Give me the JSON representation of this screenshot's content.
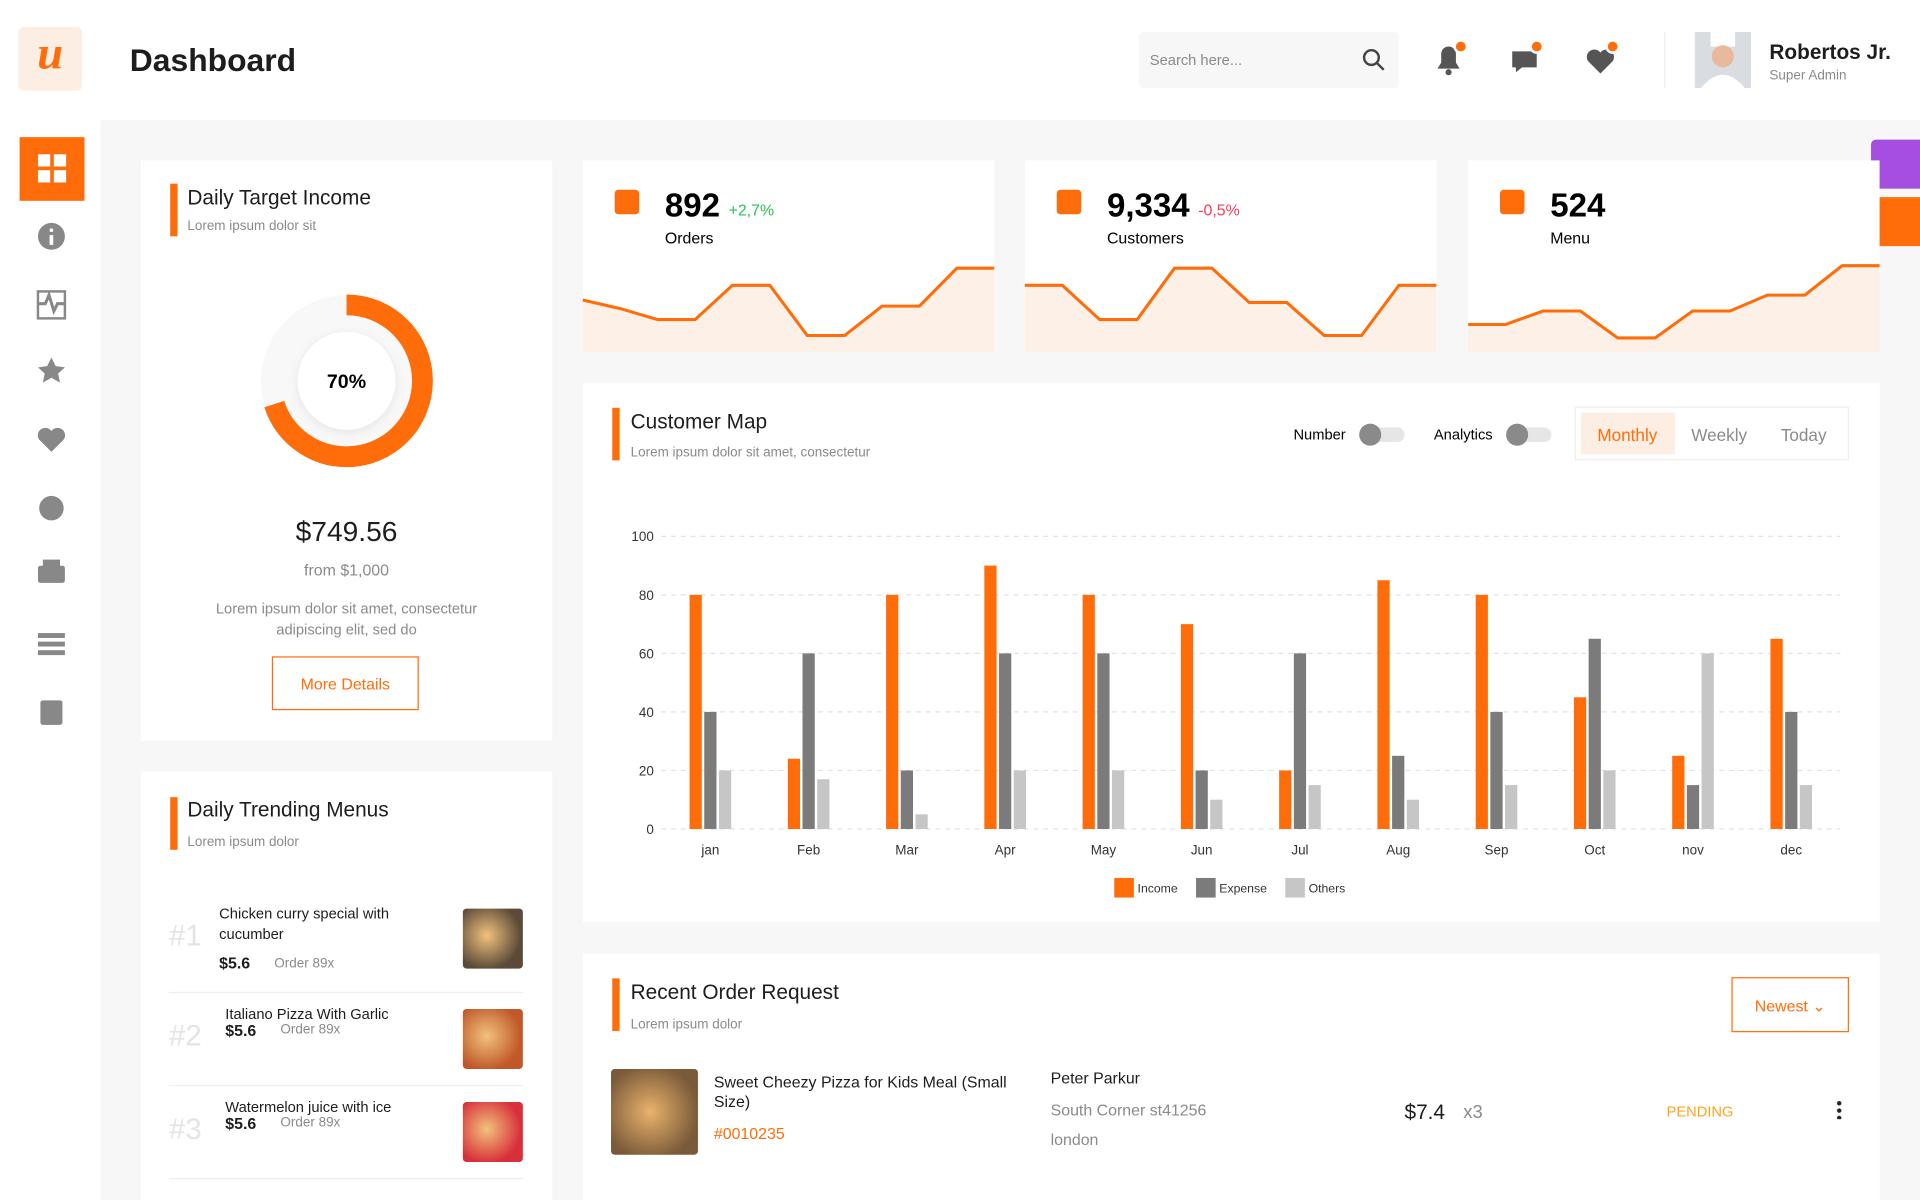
{
  "header": {
    "logo": "u",
    "title": "Dashboard",
    "search_placeholder": "Search here...",
    "user_name": "Robertos Jr.",
    "user_role": "Super Admin"
  },
  "daily_target": {
    "title": "Daily Target Income",
    "subtitle": "Lorem ipsum dolor sit",
    "progress": 70,
    "progress_label": "70%",
    "amount": "$749.56",
    "target": "from $1,000",
    "description": "Lorem ipsum dolor sit amet, consectetur adipiscing elit, sed do",
    "button": "More Details"
  },
  "stats": [
    {
      "value": "892",
      "change": "+2,7%",
      "change_color": "#2bc155",
      "label": "Orders",
      "trend": [
        45,
        38,
        29,
        29,
        57,
        57,
        16,
        16,
        40,
        40,
        71,
        71
      ]
    },
    {
      "value": "9,334",
      "change": "-0,5%",
      "change_color": "#f73a5a",
      "label": "Customers",
      "trend": [
        57,
        57,
        29,
        29,
        71,
        71,
        43,
        43,
        16,
        16,
        57,
        57
      ]
    },
    {
      "value": "524",
      "label": "Menu",
      "trend": [
        25,
        25,
        36,
        36,
        14,
        14,
        36,
        36,
        49,
        49,
        73,
        73
      ]
    }
  ],
  "chart_data": {
    "type": "bar",
    "title": "Customer Map",
    "subtitle": "Lorem ipsum dolor sit amet, consectetur",
    "toggles": [
      "Number",
      "Analytics"
    ],
    "tabs": [
      "Monthly",
      "Weekly",
      "Today"
    ],
    "categories": [
      "jan",
      "Feb",
      "Mar",
      "Apr",
      "May",
      "Jun",
      "Jul",
      "Aug",
      "Sep",
      "Oct",
      "nov",
      "dec"
    ],
    "series": [
      {
        "name": "Income",
        "color": "#ff6d0a",
        "values": [
          80,
          24,
          80,
          90,
          80,
          70,
          20,
          85,
          80,
          45,
          25,
          65
        ]
      },
      {
        "name": "Expense",
        "color": "#7b7b7b",
        "values": [
          40,
          60,
          20,
          60,
          60,
          20,
          60,
          25,
          40,
          65,
          15,
          40
        ]
      },
      {
        "name": "Others",
        "color": "#c6c6c6",
        "values": [
          20,
          17,
          5,
          20,
          20,
          10,
          15,
          10,
          15,
          20,
          60,
          15
        ]
      }
    ],
    "ylim": [
      0,
      100
    ],
    "yticks": [
      0,
      20,
      40,
      60,
      80,
      100
    ],
    "grid": true,
    "legend": "bottom"
  },
  "trending": {
    "title": "Daily Trending Menus",
    "subtitle": "Lorem ipsum dolor",
    "items": [
      {
        "rank": "#1",
        "name": "Chicken curry special with cucumber",
        "price": "$5.6",
        "orders": "Order 89x"
      },
      {
        "rank": "#2",
        "name": "Italiano Pizza With Garlic",
        "price": "$5.6",
        "orders": "Order 89x"
      },
      {
        "rank": "#3",
        "name": "Watermelon juice with ice",
        "price": "$5.6",
        "orders": "Order 89x"
      }
    ]
  },
  "orders": {
    "title": "Recent Order Request",
    "subtitle": "Lorem ipsum dolor",
    "sort": "Newest",
    "rows": [
      {
        "name": "Sweet Cheezy Pizza for Kids Meal (Small Size)",
        "id": "#0010235",
        "customer": "Peter Parkur",
        "address": "South Corner st41256",
        "city": "london",
        "price": "$7.4",
        "quantity": "x3",
        "status": "PENDING"
      }
    ]
  }
}
